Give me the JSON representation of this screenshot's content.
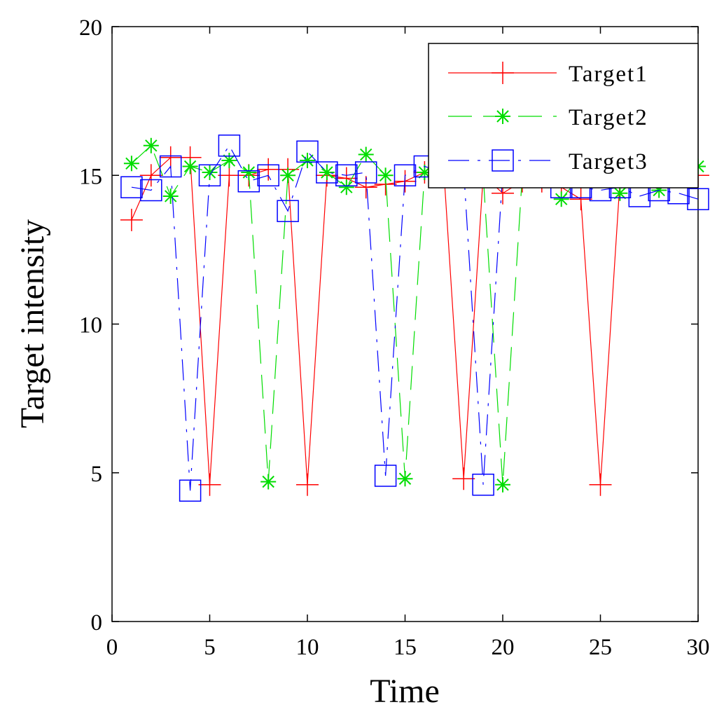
{
  "chart_data": {
    "type": "line",
    "title": "",
    "xlabel": "Time",
    "ylabel": "Target intensity",
    "xlim": [
      0,
      30
    ],
    "ylim": [
      0,
      20
    ],
    "xticks": [
      "0",
      "5",
      "10",
      "15",
      "20",
      "25",
      "30"
    ],
    "yticks": [
      "0",
      "5",
      "10",
      "15",
      "20"
    ],
    "grid": false,
    "legend_position": "top-right",
    "x": [
      1,
      2,
      3,
      4,
      5,
      6,
      7,
      8,
      9,
      10,
      11,
      12,
      13,
      14,
      15,
      16,
      17,
      18,
      19,
      20,
      21,
      22,
      23,
      24,
      25,
      26,
      27,
      28,
      29,
      30
    ],
    "series": [
      {
        "name": "Target1",
        "color": "#ff0000",
        "marker": "plus",
        "line": "solid",
        "values": [
          13.5,
          15.0,
          15.6,
          15.6,
          4.6,
          15.0,
          15.0,
          15.2,
          15.2,
          4.6,
          15.0,
          14.9,
          14.6,
          14.7,
          14.8,
          15.1,
          15.0,
          4.8,
          15.0,
          14.4,
          14.8,
          14.8,
          14.6,
          14.2,
          4.6,
          14.8,
          15.1,
          15.0,
          15.0,
          15.0
        ]
      },
      {
        "name": "Target2",
        "color": "#00dd00",
        "marker": "asterisk",
        "line": "dashed",
        "values": [
          15.4,
          16.0,
          14.3,
          15.3,
          15.1,
          15.5,
          15.1,
          4.7,
          15.0,
          15.5,
          15.1,
          14.6,
          15.7,
          15.0,
          4.8,
          15.1,
          15.0,
          15.0,
          15.0,
          4.6,
          15.0,
          15.1,
          14.2,
          15.0,
          15.0,
          14.4,
          15.0,
          14.5,
          15.0,
          15.3
        ]
      },
      {
        "name": "Target3",
        "color": "#0000ff",
        "marker": "square",
        "line": "dashdot",
        "values": [
          14.6,
          14.5,
          15.3,
          4.4,
          15.0,
          16.0,
          14.8,
          15.0,
          13.8,
          15.8,
          15.1,
          15.0,
          15.1,
          4.9,
          15.0,
          15.3,
          15.1,
          15.2,
          4.6,
          15.1,
          15.0,
          15.0,
          14.6,
          14.6,
          14.5,
          14.6,
          14.3,
          14.5,
          14.4,
          14.2
        ]
      }
    ]
  }
}
